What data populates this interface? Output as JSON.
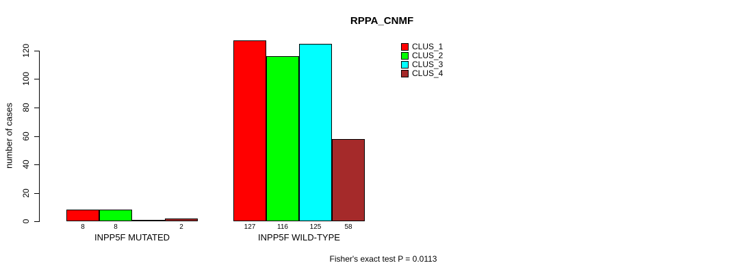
{
  "chart_data": {
    "type": "bar",
    "title": "RPPA_CNMF",
    "xlabel": "",
    "ylabel": "number of cases",
    "categories": [
      "INPP5F MUTATED",
      "INPP5F WILD-TYPE"
    ],
    "series": [
      {
        "name": "CLUS_1",
        "color": "#ff0000",
        "values": [
          8,
          127
        ]
      },
      {
        "name": "CLUS_2",
        "color": "#00ff00",
        "values": [
          8,
          116
        ]
      },
      {
        "name": "CLUS_3",
        "color": "#00ffff",
        "values": [
          0,
          125
        ]
      },
      {
        "name": "CLUS_4",
        "color": "#a52a2a",
        "values": [
          2,
          58
        ]
      }
    ],
    "bar_labels": [
      [
        "8",
        "8",
        null,
        "2"
      ],
      [
        "127",
        "116",
        "125",
        "58"
      ]
    ],
    "yticks": [
      0,
      20,
      40,
      60,
      80,
      100,
      120
    ],
    "ylim": [
      0,
      127
    ],
    "grid": false,
    "legend_position": "right",
    "annotation": "Fisher's exact test P = 0.0113"
  }
}
